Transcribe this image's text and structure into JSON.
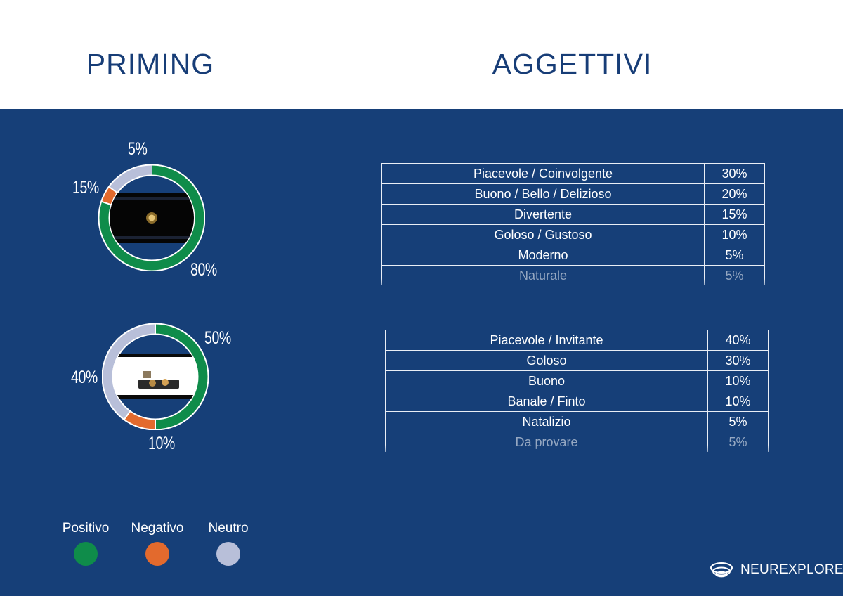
{
  "headers": {
    "left_title": "PRIMING",
    "right_title": "AGGETTIVI"
  },
  "colors": {
    "positivo": "#0f8c4a",
    "negativo": "#e36a2d",
    "neutro": "#b8bfd9",
    "background": "#163f78",
    "title": "#173d77"
  },
  "chart_data": [
    {
      "type": "pie",
      "slices": [
        {
          "label": "Positivo",
          "value": 80
        },
        {
          "label": "Negativo",
          "value": 5
        },
        {
          "label": "Neutro",
          "value": 15
        }
      ],
      "labels": {
        "positivo": "80%",
        "negativo": "5%",
        "neutro": "15%"
      }
    },
    {
      "type": "pie",
      "slices": [
        {
          "label": "Positivo",
          "value": 50
        },
        {
          "label": "Negativo",
          "value": 10
        },
        {
          "label": "Neutro",
          "value": 40
        }
      ],
      "labels": {
        "positivo": "50%",
        "negativo": "10%",
        "neutro": "40%"
      }
    },
    {
      "type": "table",
      "rows": [
        {
          "label": "Piacevole / Coinvolgente",
          "value": "30%"
        },
        {
          "label": "Buono / Bello / Delizioso",
          "value": "20%"
        },
        {
          "label": "Divertente",
          "value": "15%"
        },
        {
          "label": "Goloso / Gustoso",
          "value": "10%"
        },
        {
          "label": "Moderno",
          "value": "5%"
        },
        {
          "label": "Naturale",
          "value": "5%"
        }
      ]
    },
    {
      "type": "table",
      "rows": [
        {
          "label": "Piacevole / Invitante",
          "value": "40%"
        },
        {
          "label": "Goloso",
          "value": "30%"
        },
        {
          "label": "Buono",
          "value": "10%"
        },
        {
          "label": "Banale / Finto",
          "value": "10%"
        },
        {
          "label": "Natalizio",
          "value": "5%"
        },
        {
          "label": "Da provare",
          "value": "5%"
        }
      ]
    }
  ],
  "legend": {
    "positivo": "Positivo",
    "negativo": "Negativo",
    "neutro": "Neutro"
  },
  "brand": {
    "name": "NEUREXPLORE",
    "icon": "neurexplore-logo-icon"
  }
}
